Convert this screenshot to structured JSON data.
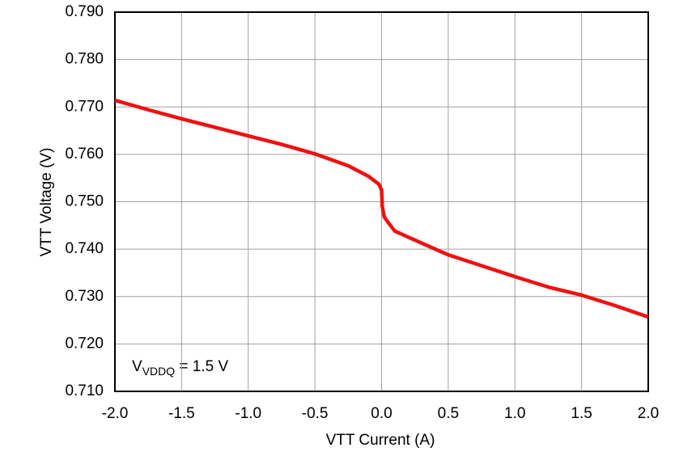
{
  "chart_data": {
    "type": "line",
    "x_label": "VTT Current (A)",
    "y_label": "VTT Voltage (V)",
    "annotation": {
      "symbol": "V",
      "subscript": "VDDQ",
      "text": " = 1.5 V"
    },
    "x": [
      -2.0,
      -1.75,
      -1.5,
      -1.25,
      -1.0,
      -0.75,
      -0.5,
      -0.25,
      -0.1,
      -0.02,
      0,
      0.005,
      0.02,
      0.05,
      0.1,
      0.25,
      0.5,
      0.75,
      1.0,
      1.25,
      1.5,
      1.75,
      2.0
    ],
    "series": [
      {
        "color": "#ee1111",
        "values": [
          0.7714,
          0.7694,
          0.7675,
          0.7657,
          0.7639,
          0.7621,
          0.7601,
          0.7576,
          0.7554,
          0.7537,
          0.7525,
          0.749,
          0.7468,
          0.7456,
          0.7438,
          0.7419,
          0.7388,
          0.7365,
          0.7342,
          0.732,
          0.7303,
          0.7281,
          0.7257
        ]
      }
    ],
    "xlim": [
      -2.0,
      2.0
    ],
    "xticks": [
      {
        "value": -2,
        "label": "-2.0"
      },
      -1.5,
      {
        "value": -1,
        "label": "-1.0"
      },
      -0.5,
      {
        "value": 0,
        "label": "0.0"
      },
      0.5,
      {
        "value": 1,
        "label": "1.0"
      },
      1.5,
      {
        "value": 2,
        "label": "2.0"
      }
    ],
    "ylim": [
      0.71,
      0.79
    ],
    "yticks": [
      {
        "value": 0.71,
        "label": "0.710"
      },
      {
        "value": 0.72,
        "label": "0.720"
      },
      {
        "value": 0.73,
        "label": "0.730"
      },
      {
        "value": 0.74,
        "label": "0.740"
      },
      {
        "value": 0.75,
        "label": "0.750"
      },
      {
        "value": 0.76,
        "label": "0.760"
      },
      {
        "value": 0.77,
        "label": "0.770"
      },
      {
        "value": 0.78,
        "label": "0.780"
      },
      {
        "value": 0.79,
        "label": "0.790"
      }
    ],
    "grid": true
  }
}
